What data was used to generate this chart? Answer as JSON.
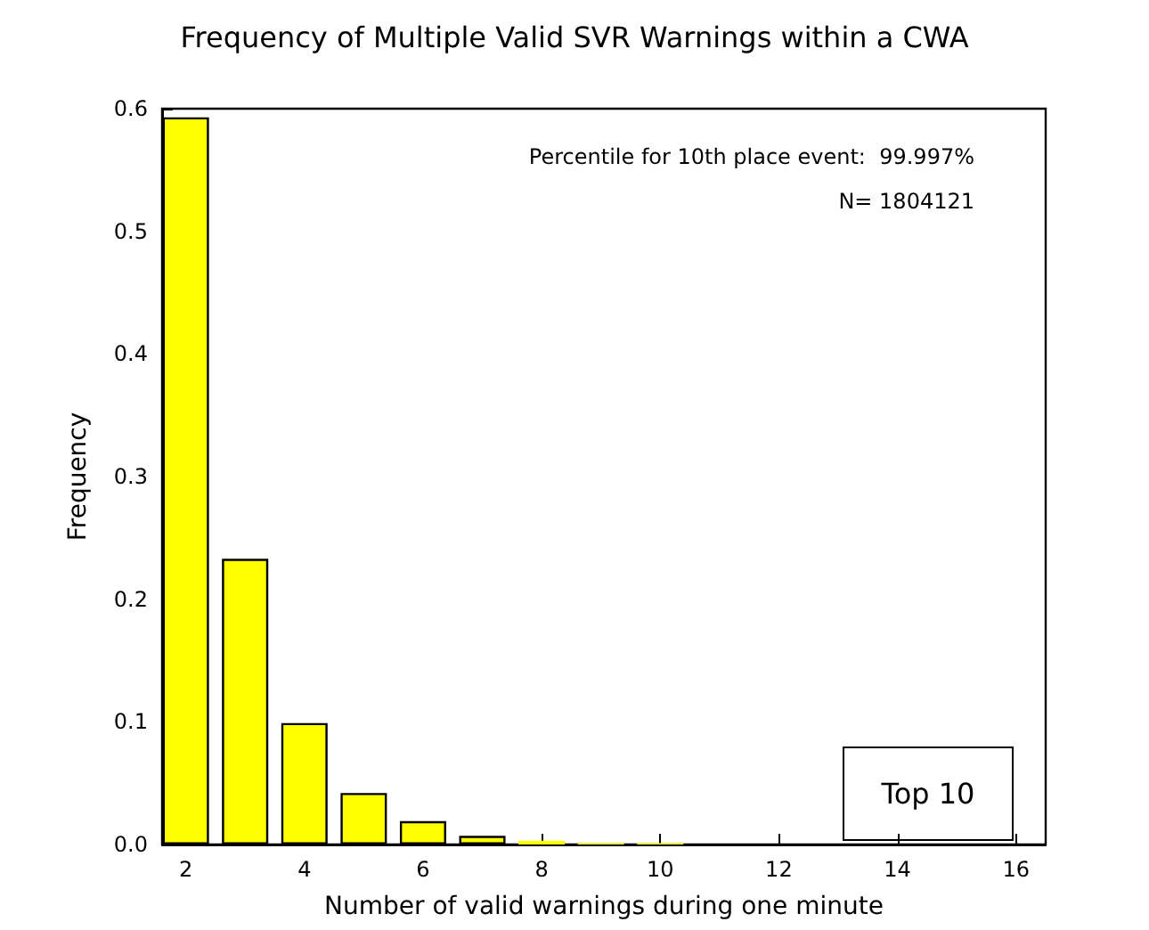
{
  "chart_data": {
    "type": "bar",
    "title": "Frequency of Multiple Valid SVR Warnings within a CWA",
    "xlabel": "Number of valid warnings during one minute",
    "ylabel": "Frequency",
    "x": [
      2,
      3,
      4,
      5,
      6,
      7,
      8,
      9,
      10
    ],
    "values": [
      0.593,
      0.233,
      0.099,
      0.042,
      0.019,
      0.007,
      0.003,
      0.001,
      0.001
    ],
    "color": "#ffff00",
    "xlim": [
      1.6,
      16.5
    ],
    "xticks": [
      2,
      4,
      6,
      8,
      10,
      12,
      14,
      16
    ],
    "ylim": [
      0,
      0.6
    ],
    "yticks": [
      {
        "value": 0,
        "label": "0.0"
      },
      {
        "value": 0.1,
        "label": "0.1"
      },
      {
        "value": 0.2,
        "label": "0.2"
      },
      {
        "value": 0.3,
        "label": "0.3"
      },
      {
        "value": 0.4,
        "label": "0.4"
      },
      {
        "value": 0.5,
        "label": "0.5"
      },
      {
        "value": 0.6,
        "label": "0.6"
      }
    ],
    "grid": false,
    "annotations": [
      "Percentile for 10th place event:  99.997%",
      "N= 1804121",
      "Top 10"
    ]
  }
}
